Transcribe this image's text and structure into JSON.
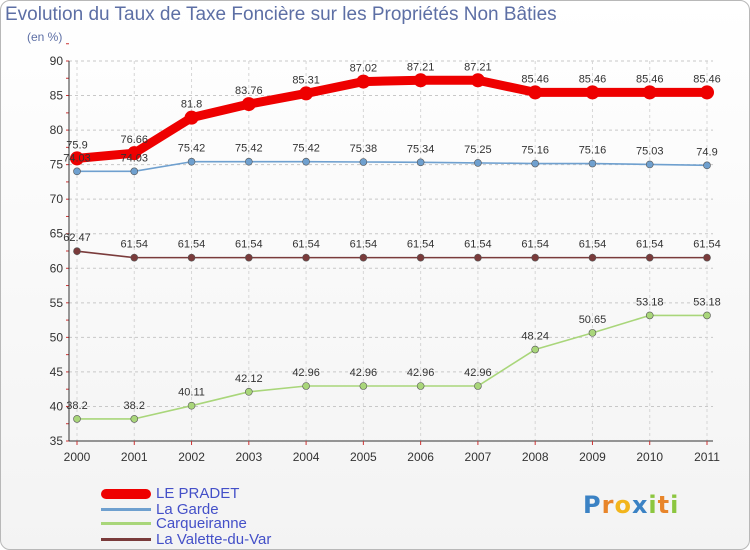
{
  "title": "Evolution du Taux de Taxe Foncière sur les Propriétés Non Bâties",
  "subtitle": "(en %)",
  "logo": {
    "letters": [
      {
        "char": "P",
        "color": "#3b82c4"
      },
      {
        "char": "r",
        "color": "#e8852a"
      },
      {
        "char": "o",
        "color": "#f2b51c"
      },
      {
        "char": "x",
        "color": "#3b82c4"
      },
      {
        "char": "i",
        "color": "#8cc63f"
      },
      {
        "char": "t",
        "color": "#e8852a"
      },
      {
        "char": "i",
        "color": "#8cc63f"
      }
    ]
  },
  "chart_data": {
    "type": "line",
    "x": [
      "2000",
      "2001",
      "2002",
      "2003",
      "2004",
      "2005",
      "2006",
      "2007",
      "2008",
      "2009",
      "2010",
      "2011"
    ],
    "ylim": [
      35,
      90
    ],
    "yticks": [
      35,
      40,
      45,
      50,
      55,
      60,
      65,
      70,
      75,
      80,
      85,
      90
    ],
    "grid": "horizontal dashed",
    "legend_position": "bottom-left",
    "series": [
      {
        "name": "LE PRADET",
        "color": "#ee0000",
        "values": [
          75.9,
          76.66,
          81.8,
          83.76,
          85.31,
          87.02,
          87.21,
          87.21,
          85.46,
          85.46,
          85.46,
          85.46
        ],
        "labels": [
          "75.9",
          "76.66",
          "81.8",
          "83.76",
          "85.31",
          "87.02",
          "87.21",
          "87.21",
          "85.46",
          "85.46",
          "85.46",
          "85.46"
        ]
      },
      {
        "name": "La Garde",
        "color": "#6fa0cf",
        "values": [
          74.03,
          74.03,
          75.42,
          75.42,
          75.42,
          75.38,
          75.34,
          75.25,
          75.16,
          75.16,
          75.03,
          74.9
        ],
        "labels": [
          "74.03",
          "74.03",
          "75.42",
          "75.42",
          "75.42",
          "75.38",
          "75.34",
          "75.25",
          "75.16",
          "75.16",
          "75.03",
          "74.9"
        ]
      },
      {
        "name": "Carqueiranne",
        "color": "#a9d67a",
        "values": [
          38.2,
          38.2,
          40.11,
          42.12,
          42.96,
          42.96,
          42.96,
          42.96,
          48.24,
          50.65,
          53.18,
          53.18
        ],
        "labels": [
          "38.2",
          "38.2",
          "40.11",
          "42.12",
          "42.96",
          "42.96",
          "42.96",
          "42.96",
          "48.24",
          "50.65",
          "53.18",
          "53.18"
        ]
      },
      {
        "name": "La Valette-du-Var",
        "color": "#7a3b3b",
        "values": [
          62.47,
          61.54,
          61.54,
          61.54,
          61.54,
          61.54,
          61.54,
          61.54,
          61.54,
          61.54,
          61.54,
          61.54
        ],
        "labels": [
          "62.47",
          "61.54",
          "61.54",
          "61.54",
          "61.54",
          "61.54",
          "61.54",
          "61.54",
          "61.54",
          "61.54",
          "61.54",
          "61.54"
        ]
      }
    ]
  }
}
